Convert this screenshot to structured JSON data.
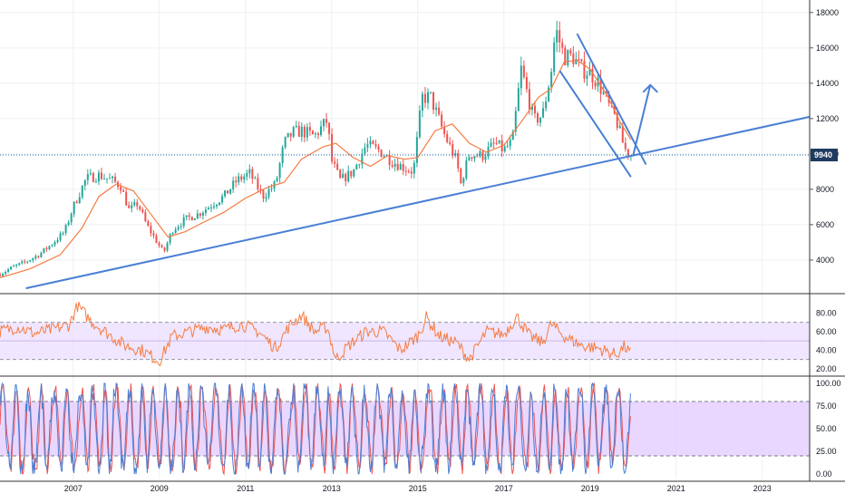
{
  "colors": {
    "up": "#26a69a",
    "down": "#ef5350",
    "ma": "#f57c42",
    "trendline": "#4a7fd4",
    "rsi": "#f57c42",
    "rsi_band": "#e9dcff",
    "stoch_k": "#4a7fd4",
    "stoch_d": "#ef5350",
    "stoch_band": "#e2c9ff",
    "grid": "#eef0f4",
    "divider": "#333333",
    "price_label_bg": "#1e3a5f"
  },
  "chart_data": [
    {
      "type": "candlestick",
      "price_axis_ticks": [
        "18000",
        "16000",
        "14000",
        "12000",
        "10000",
        "8000",
        "6000",
        "4000"
      ],
      "current_price_label": "9940",
      "ylim": [
        2200,
        18400
      ],
      "xlim": [
        2005.3,
        2024.1
      ],
      "time_axis_ticks": [
        {
          "label": "2007",
          "x": 2007
        },
        {
          "label": "2009",
          "x": 2009
        },
        {
          "label": "2011",
          "x": 2011
        },
        {
          "label": "2013",
          "x": 2013
        },
        {
          "label": "2015",
          "x": 2015
        },
        {
          "label": "2017",
          "x": 2017
        },
        {
          "label": "2019",
          "x": 2019
        },
        {
          "label": "2021",
          "x": 2021
        },
        {
          "label": "2023",
          "x": 2023
        }
      ],
      "close_series": {
        "x": [
          2005.3,
          2005.6,
          2005.9,
          2006.2,
          2006.5,
          2006.8,
          2007.0,
          2007.3,
          2007.6,
          2007.9,
          2008.1,
          2008.3,
          2008.5,
          2008.7,
          2008.9,
          2009.1,
          2009.3,
          2009.6,
          2009.9,
          2010.2,
          2010.5,
          2010.8,
          2011.1,
          2011.4,
          2011.7,
          2011.9,
          2012.1,
          2012.3,
          2012.6,
          2012.9,
          2013.0,
          2013.2,
          2013.5,
          2013.8,
          2014.1,
          2014.4,
          2014.7,
          2014.9,
          2015.1,
          2015.3,
          2015.6,
          2015.9,
          2016.0,
          2016.2,
          2016.5,
          2016.8,
          2017.0,
          2017.2,
          2017.4,
          2017.7,
          2017.9,
          2018.1,
          2018.2,
          2018.4,
          2018.6,
          2018.8,
          2019.0,
          2019.2,
          2019.4,
          2019.6,
          2019.8,
          2019.95
        ],
        "values": [
          3200,
          3600,
          3900,
          4300,
          4900,
          5600,
          7000,
          8600,
          8800,
          8500,
          8200,
          6800,
          7200,
          6000,
          5200,
          4400,
          5700,
          6300,
          6600,
          7100,
          7600,
          8500,
          8900,
          7600,
          8300,
          10600,
          11200,
          11300,
          11000,
          11900,
          9600,
          8500,
          9000,
          10500,
          10200,
          9600,
          9200,
          9000,
          13200,
          13200,
          11200,
          9600,
          8300,
          10000,
          9900,
          10600,
          10200,
          10700,
          14800,
          11900,
          12200,
          14700,
          17100,
          15500,
          15500,
          14800,
          14600,
          14000,
          12900,
          12000,
          10300,
          9940
        ]
      },
      "moving_average": {
        "x": [
          2005.3,
          2006.0,
          2006.7,
          2007.2,
          2007.6,
          2008.0,
          2008.4,
          2008.8,
          2009.2,
          2009.6,
          2010.0,
          2010.5,
          2011.0,
          2011.5,
          2011.9,
          2012.3,
          2012.8,
          2013.1,
          2013.5,
          2013.9,
          2014.3,
          2014.7,
          2015.0,
          2015.4,
          2015.8,
          2016.2,
          2016.6,
          2017.0,
          2017.4,
          2017.8,
          2018.1,
          2018.4,
          2018.7,
          2019.0,
          2019.4,
          2019.7,
          2019.95
        ],
        "values": [
          3000,
          3500,
          4300,
          5800,
          7600,
          8300,
          7900,
          6600,
          5300,
          5600,
          6100,
          6700,
          7500,
          8100,
          8400,
          9700,
          10400,
          10600,
          9800,
          9300,
          9900,
          9700,
          9800,
          11300,
          11700,
          10600,
          10100,
          10500,
          11800,
          13200,
          13700,
          15200,
          15300,
          14800,
          13300,
          11800,
          10800
        ]
      },
      "trendlines": [
        {
          "x": [
            2005.9,
            2024.1
          ],
          "values": [
            2400,
            12100
          ]
        },
        {
          "x": [
            2018.7,
            2020.3
          ],
          "values": [
            16800,
            9400
          ]
        },
        {
          "x": [
            2018.3,
            2019.95
          ],
          "values": [
            14700,
            8700
          ]
        },
        {
          "x": [
            2020.0,
            2020.4
          ],
          "values": [
            9900,
            13900
          ]
        }
      ]
    },
    {
      "type": "line",
      "indicator": "RSI",
      "ylim": [
        15,
        95
      ],
      "axis_ticks": [
        "80.00",
        "60.00",
        "40.00",
        "20.00"
      ],
      "band": [
        30,
        70
      ],
      "series": [
        {
          "x": [
            2005.3,
            2005.7,
            2006.1,
            2006.5,
            2006.9,
            2007.1,
            2007.4,
            2007.8,
            2008.2,
            2008.6,
            2009.0,
            2009.3,
            2009.7,
            2010.1,
            2010.5,
            2010.9,
            2011.3,
            2011.7,
            2012.0,
            2012.3,
            2012.6,
            2012.9,
            2013.1,
            2013.4,
            2013.8,
            2014.2,
            2014.6,
            2015.0,
            2015.2,
            2015.5,
            2015.9,
            2016.2,
            2016.6,
            2017.0,
            2017.3,
            2017.6,
            2017.9,
            2018.1,
            2018.4,
            2018.8,
            2019.2,
            2019.6,
            2019.8,
            2019.95
          ],
          "values": [
            60,
            65,
            58,
            62,
            67,
            88,
            72,
            58,
            45,
            40,
            28,
            55,
            60,
            65,
            62,
            68,
            60,
            42,
            65,
            78,
            60,
            65,
            30,
            45,
            60,
            60,
            40,
            55,
            75,
            55,
            48,
            30,
            60,
            57,
            76,
            55,
            48,
            68,
            55,
            45,
            42,
            35,
            44,
            36
          ]
        }
      ]
    },
    {
      "type": "line",
      "indicator": "Stochastic",
      "ylim": [
        -5,
        105
      ],
      "axis_ticks": [
        "100.00",
        "75.00",
        "50.00",
        "25.00",
        "0.00"
      ],
      "band": [
        20,
        80
      ]
    }
  ]
}
